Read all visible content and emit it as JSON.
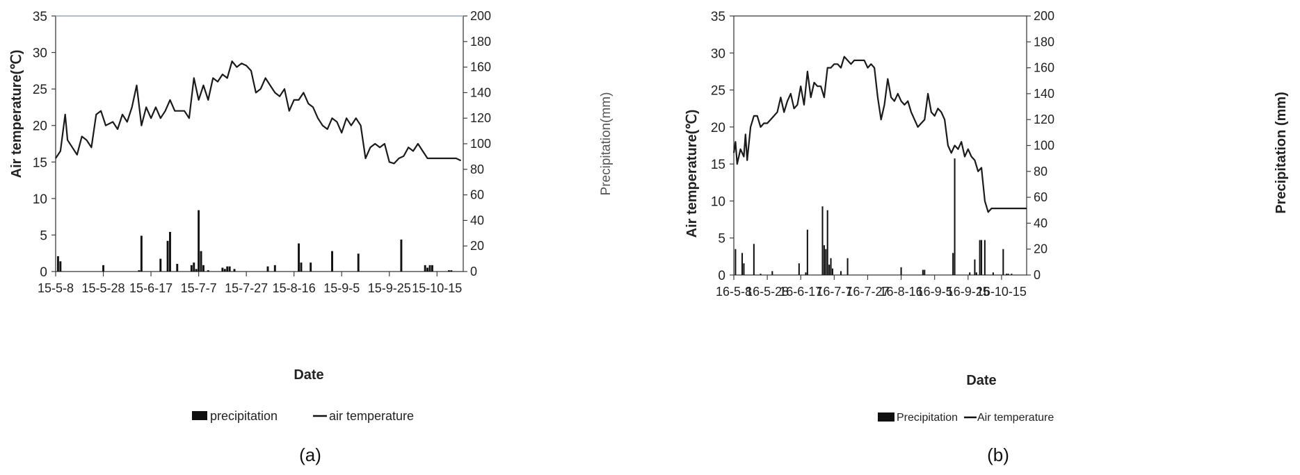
{
  "chart_data": [
    {
      "type": "bar+line",
      "panel_label": "(a)",
      "xlabel": "Date",
      "ylabel_left": "Air temperature(℃)",
      "ylabel_right": "Precipitation(mm)",
      "ylim_left": [
        0,
        35
      ],
      "ylim_right": [
        0,
        200
      ],
      "y_ticks_left": [
        "0",
        "5",
        "10",
        "15",
        "20",
        "25",
        "30",
        "35"
      ],
      "y_ticks_right": [
        "0",
        "20",
        "40",
        "60",
        "80",
        "100",
        "120",
        "140",
        "160",
        "180",
        "200"
      ],
      "x_start": "2015-05-08",
      "x_end": "2015-10-26",
      "x_ticks": [
        {
          "date": "2015-05-08",
          "label": "15-5-8"
        },
        {
          "date": "2015-05-28",
          "label": "15-5-28"
        },
        {
          "date": "2015-06-17",
          "label": "15-6-17"
        },
        {
          "date": "2015-07-07",
          "label": "15-7-7"
        },
        {
          "date": "2015-07-27",
          "label": "15-7-27"
        },
        {
          "date": "2015-08-16",
          "label": "15-8-16"
        },
        {
          "date": "2015-09-05",
          "label": "15-9-5"
        },
        {
          "date": "2015-09-25",
          "label": "15-9-25"
        },
        {
          "date": "2015-10-15",
          "label": "15-10-15"
        }
      ],
      "legend": {
        "bar": "precipitation",
        "line": "air temperature"
      },
      "series": [
        {
          "name": "air temperature",
          "axis": "left",
          "dates": [
            "2015-05-08",
            "2015-05-10",
            "2015-05-12",
            "2015-05-13",
            "2015-05-15",
            "2015-05-17",
            "2015-05-19",
            "2015-05-21",
            "2015-05-23",
            "2015-05-25",
            "2015-05-27",
            "2015-05-29",
            "2015-06-01",
            "2015-06-03",
            "2015-06-05",
            "2015-06-07",
            "2015-06-09",
            "2015-06-11",
            "2015-06-13",
            "2015-06-15",
            "2015-06-17",
            "2015-06-19",
            "2015-06-21",
            "2015-06-23",
            "2015-06-25",
            "2015-06-27",
            "2015-06-29",
            "2015-07-01",
            "2015-07-03",
            "2015-07-05",
            "2015-07-07",
            "2015-07-09",
            "2015-07-11",
            "2015-07-13",
            "2015-07-15",
            "2015-07-17",
            "2015-07-19",
            "2015-07-21",
            "2015-07-23",
            "2015-07-25",
            "2015-07-27",
            "2015-07-29",
            "2015-07-31",
            "2015-08-02",
            "2015-08-04",
            "2015-08-06",
            "2015-08-08",
            "2015-08-10",
            "2015-08-12",
            "2015-08-14",
            "2015-08-16",
            "2015-08-18",
            "2015-08-20",
            "2015-08-22",
            "2015-08-24",
            "2015-08-26",
            "2015-08-28",
            "2015-08-30",
            "2015-09-01",
            "2015-09-03",
            "2015-09-05",
            "2015-09-07",
            "2015-09-09",
            "2015-09-11",
            "2015-09-13",
            "2015-09-15",
            "2015-09-17",
            "2015-09-19",
            "2015-09-21",
            "2015-09-23",
            "2015-09-25",
            "2015-09-27",
            "2015-09-29",
            "2015-10-01",
            "2015-10-03",
            "2015-10-05",
            "2015-10-07",
            "2015-10-09",
            "2015-10-11",
            "2015-10-13",
            "2015-10-15",
            "2015-10-17",
            "2015-10-19",
            "2015-10-21",
            "2015-10-23",
            "2015-10-25"
          ],
          "values": [
            15.5,
            16.5,
            21.5,
            18,
            17,
            16,
            18.5,
            18,
            17,
            21.5,
            22,
            20,
            20.5,
            19.5,
            21.5,
            20.5,
            22.5,
            25.5,
            20,
            22.5,
            21,
            22.5,
            21,
            22,
            23.5,
            22,
            22,
            22,
            21,
            26.5,
            23.5,
            25.5,
            23.5,
            26.5,
            26,
            27,
            26.5,
            28.8,
            28,
            28.5,
            28.2,
            27.5,
            24.5,
            25,
            26.5,
            25.5,
            24.5,
            24,
            25,
            22,
            23.5,
            23.5,
            24.5,
            23,
            22.5,
            21,
            20,
            19.5,
            21,
            20.5,
            19,
            21,
            20,
            21,
            20,
            15.5,
            17,
            17.5,
            17,
            17.5,
            15,
            14.8,
            15.5,
            15.8,
            17,
            16.5,
            17.5,
            16.5,
            15.5,
            15.5,
            15.5,
            15.5,
            15.5,
            15.5,
            15.5,
            15.2
          ]
        },
        {
          "name": "precipitation",
          "axis": "right",
          "dates": [
            "2015-05-09",
            "2015-05-10",
            "2015-05-28",
            "2015-06-12",
            "2015-06-13",
            "2015-06-21",
            "2015-06-24",
            "2015-06-25",
            "2015-06-28",
            "2015-07-04",
            "2015-07-05",
            "2015-07-06",
            "2015-07-07",
            "2015-07-08",
            "2015-07-09",
            "2015-07-11",
            "2015-07-17",
            "2015-07-18",
            "2015-07-19",
            "2015-07-20",
            "2015-07-22",
            "2015-08-05",
            "2015-08-08",
            "2015-08-18",
            "2015-08-19",
            "2015-08-23",
            "2015-09-01",
            "2015-09-12",
            "2015-09-30",
            "2015-10-10",
            "2015-10-11",
            "2015-10-12",
            "2015-10-13",
            "2015-10-20",
            "2015-10-21"
          ],
          "values": [
            12,
            8,
            5,
            1,
            28,
            10,
            24,
            31,
            6,
            5,
            7,
            2,
            48,
            16,
            5,
            1,
            3,
            2,
            4,
            4,
            2,
            4,
            5,
            22,
            7,
            7,
            16,
            14,
            25,
            5,
            3,
            5,
            5,
            1,
            1
          ]
        }
      ]
    },
    {
      "type": "bar+line",
      "panel_label": "(b)",
      "xlabel": "Date",
      "ylabel_left": "Air temperature(℃)",
      "ylabel_right": "Precipitation (mm)",
      "ylim_left": [
        0,
        35
      ],
      "ylim_right": [
        0,
        200
      ],
      "y_ticks_left": [
        "0",
        "5",
        "10",
        "15",
        "20",
        "25",
        "30",
        "35"
      ],
      "y_ticks_right": [
        "0",
        "20",
        "40",
        "60",
        "80",
        "100",
        "120",
        "140",
        "160",
        "180",
        "200"
      ],
      "x_start": "2016-05-08",
      "x_end": "2016-10-30",
      "x_ticks": [
        {
          "date": "2016-05-08",
          "label": "16-5-8"
        },
        {
          "date": "2016-05-28",
          "label": "16-5-28"
        },
        {
          "date": "2016-06-17",
          "label": "16-6-17"
        },
        {
          "date": "2016-07-07",
          "label": "16-7-7"
        },
        {
          "date": "2016-07-27",
          "label": "16-7-27"
        },
        {
          "date": "2016-08-16",
          "label": "16-8-16"
        },
        {
          "date": "2016-09-05",
          "label": "16-9-5"
        },
        {
          "date": "2016-09-25",
          "label": "16-9-25"
        },
        {
          "date": "2016-10-15",
          "label": "16-10-15"
        }
      ],
      "legend": {
        "bar": "Precipitation",
        "line": "Air temperature"
      },
      "series": [
        {
          "name": "Air temperature",
          "axis": "left",
          "dates": [
            "2016-05-08",
            "2016-05-09",
            "2016-05-10",
            "2016-05-12",
            "2016-05-14",
            "2016-05-15",
            "2016-05-16",
            "2016-05-18",
            "2016-05-20",
            "2016-05-22",
            "2016-05-24",
            "2016-05-26",
            "2016-05-28",
            "2016-05-30",
            "2016-06-01",
            "2016-06-03",
            "2016-06-05",
            "2016-06-07",
            "2016-06-09",
            "2016-06-11",
            "2016-06-13",
            "2016-06-15",
            "2016-06-17",
            "2016-06-19",
            "2016-06-21",
            "2016-06-23",
            "2016-06-25",
            "2016-06-27",
            "2016-06-29",
            "2016-07-01",
            "2016-07-03",
            "2016-07-05",
            "2016-07-07",
            "2016-07-09",
            "2016-07-11",
            "2016-07-13",
            "2016-07-15",
            "2016-07-17",
            "2016-07-19",
            "2016-07-21",
            "2016-07-23",
            "2016-07-25",
            "2016-07-27",
            "2016-07-29",
            "2016-07-31",
            "2016-08-02",
            "2016-08-04",
            "2016-08-06",
            "2016-08-08",
            "2016-08-10",
            "2016-08-12",
            "2016-08-14",
            "2016-08-16",
            "2016-08-18",
            "2016-08-20",
            "2016-08-22",
            "2016-08-24",
            "2016-08-26",
            "2016-08-28",
            "2016-08-30",
            "2016-09-01",
            "2016-09-03",
            "2016-09-05",
            "2016-09-07",
            "2016-09-09",
            "2016-09-11",
            "2016-09-13",
            "2016-09-15",
            "2016-09-17",
            "2016-09-19",
            "2016-09-21",
            "2016-09-23",
            "2016-09-25",
            "2016-09-27",
            "2016-09-29",
            "2016-10-01",
            "2016-10-03",
            "2016-10-05",
            "2016-10-07",
            "2016-10-09",
            "2016-10-11",
            "2016-10-13",
            "2016-10-15",
            "2016-10-17",
            "2016-10-19",
            "2016-10-21",
            "2016-10-23",
            "2016-10-25",
            "2016-10-27",
            "2016-10-29",
            "2016-10-30"
          ],
          "values": [
            16.5,
            18,
            15,
            17,
            16,
            19,
            15.5,
            20,
            21.5,
            21.5,
            20,
            20.5,
            20.5,
            21,
            21.5,
            22,
            24,
            22,
            23.5,
            24.5,
            22.5,
            23,
            25.5,
            23,
            27.5,
            24,
            26,
            25.5,
            25.5,
            24,
            28,
            28,
            28.5,
            28.5,
            28,
            29.5,
            29,
            28.5,
            29,
            29,
            29,
            29,
            28,
            28.5,
            28,
            24,
            21,
            23,
            26.5,
            24,
            23.5,
            24.5,
            23.5,
            23,
            23.5,
            22,
            21,
            20,
            20.5,
            21,
            24.5,
            22,
            21.5,
            22.5,
            22,
            21,
            17.5,
            16.5,
            17.5,
            17,
            18,
            16,
            17,
            16,
            15.5,
            14,
            14.5,
            10,
            8.5,
            9,
            9,
            9,
            9,
            9,
            9,
            9,
            9,
            9,
            9,
            9,
            9
          ]
        },
        {
          "name": "Precipitation",
          "axis": "right",
          "dates": [
            "2016-05-09",
            "2016-05-13",
            "2016-05-14",
            "2016-05-20",
            "2016-05-24",
            "2016-05-31",
            "2016-06-16",
            "2016-06-20",
            "2016-06-21",
            "2016-06-30",
            "2016-07-01",
            "2016-07-02",
            "2016-07-03",
            "2016-07-04",
            "2016-07-05",
            "2016-07-06",
            "2016-07-11",
            "2016-07-15",
            "2016-08-16",
            "2016-08-29",
            "2016-08-30",
            "2016-09-16",
            "2016-09-17",
            "2016-09-26",
            "2016-09-29",
            "2016-09-30",
            "2016-10-02",
            "2016-10-03",
            "2016-10-05",
            "2016-10-10",
            "2016-10-16",
            "2016-10-18",
            "2016-10-19",
            "2016-10-21"
          ],
          "values": [
            20,
            17,
            9,
            24,
            1,
            3,
            9,
            2,
            35,
            53,
            23,
            20,
            50,
            8,
            13,
            5,
            3,
            13,
            6,
            4,
            4,
            17,
            90,
            2,
            12,
            2,
            27,
            27,
            27,
            2,
            20,
            1,
            1,
            1
          ]
        }
      ]
    }
  ]
}
